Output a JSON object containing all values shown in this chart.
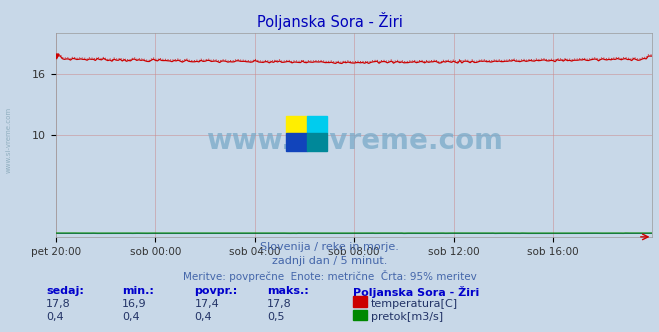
{
  "title": "Poljanska Sora - Žiri",
  "title_color": "#0000bb",
  "bg_color": "#c8d8e8",
  "plot_bg_color": "#c8d8e8",
  "x_labels": [
    "pet 20:00",
    "sob 00:00",
    "sob 04:00",
    "sob 08:00",
    "sob 12:00",
    "sob 16:00"
  ],
  "x_ticks_pos": [
    0,
    48,
    96,
    144,
    192,
    240
  ],
  "total_points": 289,
  "y_min": 0,
  "y_max": 20,
  "y_ticks": [
    10,
    16
  ],
  "grid_color": "#cc8888",
  "temp_color": "#cc0000",
  "flow_color": "#008800",
  "flow_blue_color": "#0000cc",
  "watermark_text": "www.si-vreme.com",
  "watermark_color": "#7aaac8",
  "sidebar_text": "www.si-vreme.com",
  "subtitle1": "Slovenija / reke in morje.",
  "subtitle2": "zadnji dan / 5 minut.",
  "subtitle3": "Meritve: povprečne  Enote: metrične  Črta: 95% meritev",
  "subtitle_color": "#4466aa",
  "table_header_color": "#0000cc",
  "table_headers": [
    "sedaj:",
    "min.:",
    "povpr.:",
    "maks.:"
  ],
  "temp_row": [
    "17,8",
    "16,9",
    "17,4",
    "17,8"
  ],
  "flow_row": [
    "0,4",
    "0,4",
    "0,4",
    "0,5"
  ],
  "legend_title": "Poljanska Sora - Žiri",
  "legend_temp": "temperatura[C]",
  "legend_flow": "pretok[m3/s]",
  "temp_min": 16.9,
  "temp_max": 17.8,
  "flow_val": 0.42
}
